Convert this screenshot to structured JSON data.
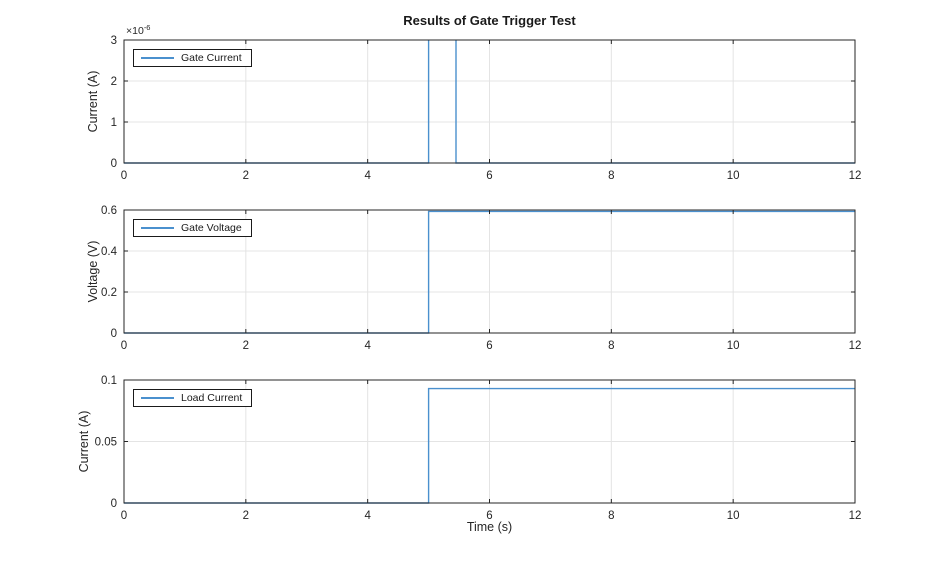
{
  "figure": {
    "title": "Results of Gate Trigger Test",
    "xlabel": "Time (s)",
    "background_color": "#ffffff",
    "axis_color": "#262626",
    "grid_color": "#e4e4e4",
    "line_color": "#4a90ce"
  },
  "chart_data": [
    {
      "type": "line",
      "ylabel": "Current (A)",
      "xlim": [
        0,
        12
      ],
      "ylim": [
        0,
        3e-06
      ],
      "xticks": [
        0,
        2,
        4,
        6,
        8,
        10,
        12
      ],
      "xtick_labels": [
        "0",
        "2",
        "4",
        "6",
        "8",
        "10",
        "12"
      ],
      "yticks": [
        0,
        1e-06,
        2e-06,
        3e-06
      ],
      "ytick_labels": [
        "0",
        "1",
        "2",
        "3"
      ],
      "y_exponent": {
        "base": "×10",
        "sup": "-6"
      },
      "grid": true,
      "legend_position": "northwest",
      "series": [
        {
          "name": "Gate Current",
          "color": "#4a90ce",
          "x": [
            0,
            5,
            5,
            5.45,
            5.45,
            12
          ],
          "y": [
            0,
            0,
            3.2e-06,
            3.2e-06,
            0,
            0
          ]
        }
      ]
    },
    {
      "type": "line",
      "ylabel": "Voltage (V)",
      "xlim": [
        0,
        12
      ],
      "ylim": [
        0,
        0.6
      ],
      "xticks": [
        0,
        2,
        4,
        6,
        8,
        10,
        12
      ],
      "xtick_labels": [
        "0",
        "2",
        "4",
        "6",
        "8",
        "10",
        "12"
      ],
      "yticks": [
        0,
        0.2,
        0.4,
        0.6
      ],
      "ytick_labels": [
        "0",
        "0.2",
        "0.4",
        "0.6"
      ],
      "grid": true,
      "legend_position": "northwest",
      "series": [
        {
          "name": "Gate Voltage",
          "color": "#4a90ce",
          "x": [
            0,
            5,
            5,
            12
          ],
          "y": [
            0,
            0,
            0.593,
            0.593
          ]
        }
      ]
    },
    {
      "type": "line",
      "ylabel": "Current (A)",
      "xlim": [
        0,
        12
      ],
      "ylim": [
        0,
        0.1
      ],
      "xticks": [
        0,
        2,
        4,
        6,
        8,
        10,
        12
      ],
      "xtick_labels": [
        "0",
        "2",
        "4",
        "6",
        "8",
        "10",
        "12"
      ],
      "yticks": [
        0,
        0.05,
        0.1
      ],
      "ytick_labels": [
        "0",
        "0.05",
        "0.1"
      ],
      "grid": true,
      "legend_position": "northwest",
      "series": [
        {
          "name": "Load Current",
          "color": "#4a90ce",
          "x": [
            0,
            5,
            5,
            12
          ],
          "y": [
            0,
            0,
            0.093,
            0.093
          ]
        }
      ]
    }
  ]
}
